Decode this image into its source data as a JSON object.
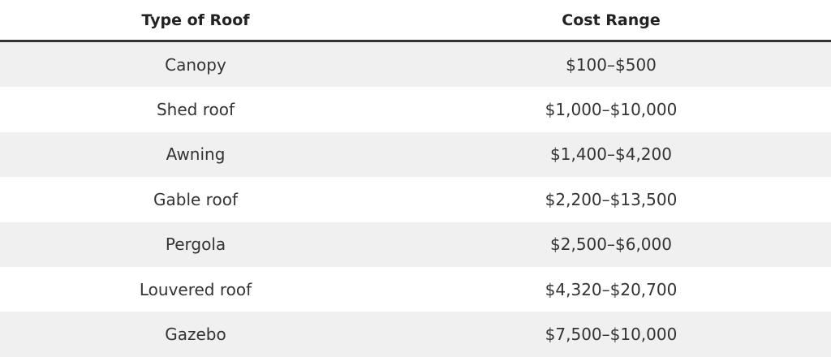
{
  "table": {
    "columns": [
      "Type of Roof",
      "Cost Range"
    ],
    "rows": [
      [
        "Canopy",
        "$100–$500"
      ],
      [
        "Shed roof",
        "$1,000–$10,000"
      ],
      [
        "Awning",
        "$1,400–$4,200"
      ],
      [
        "Gable roof",
        "$2,200–$13,500"
      ],
      [
        "Pergola",
        "$2,500–$6,000"
      ],
      [
        "Louvered roof",
        "$4,320–$20,700"
      ],
      [
        "Gazebo",
        "$7,500–$10,000"
      ]
    ]
  }
}
